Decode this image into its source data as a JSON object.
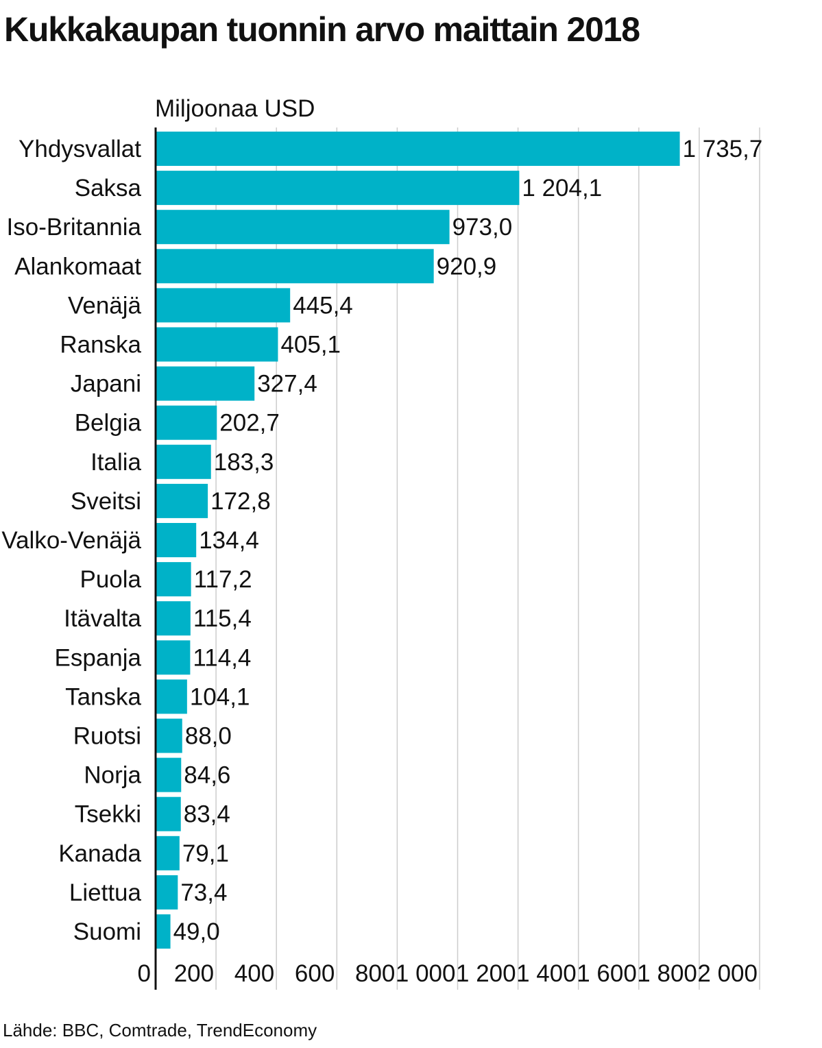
{
  "title": "Kukkakaupan tuonnin arvo maittain 2018",
  "source": "Lähde: BBC, Comtrade, TrendEconomy",
  "chart_data": {
    "type": "bar",
    "orientation": "horizontal",
    "unit_label": "Miljoonaa USD",
    "color": "#00b2c8",
    "categories": [
      "Yhdysvallat",
      "Saksa",
      "Iso-Britannia",
      "Alankomaat",
      "Venäjä",
      "Ranska",
      "Japani",
      "Belgia",
      "Italia",
      "Sveitsi",
      "Valko-Venäjä",
      "Puola",
      "Itävalta",
      "Espanja",
      "Tanska",
      "Ruotsi",
      "Norja",
      "Tsekki",
      "Kanada",
      "Liettua",
      "Suomi"
    ],
    "values": [
      1735.7,
      1204.1,
      973.0,
      920.9,
      445.4,
      405.1,
      327.4,
      202.7,
      183.3,
      172.8,
      134.4,
      117.2,
      115.4,
      114.4,
      104.1,
      88.0,
      84.6,
      83.4,
      79.1,
      73.4,
      49.0
    ],
    "value_labels": [
      "1 735,7",
      "1 204,1",
      "973,0",
      "920,9",
      "445,4",
      "405,1",
      "327,4",
      "202,7",
      "183,3",
      "172,8",
      "134,4",
      "117,2",
      "115,4",
      "114,4",
      "104,1",
      "88,0",
      "84,6",
      "83,4",
      "79,1",
      "73,4",
      "49,0"
    ],
    "ticks": [
      0,
      200,
      400,
      600,
      800,
      1000,
      1200,
      1400,
      1600,
      1800,
      2000
    ],
    "tick_labels": [
      "0",
      "200",
      "400",
      "600",
      "800",
      "1 000",
      "1 200",
      "1 400",
      "1 600",
      "1 800",
      "2 000"
    ],
    "xlim": [
      0,
      2000
    ],
    "grid": true
  }
}
